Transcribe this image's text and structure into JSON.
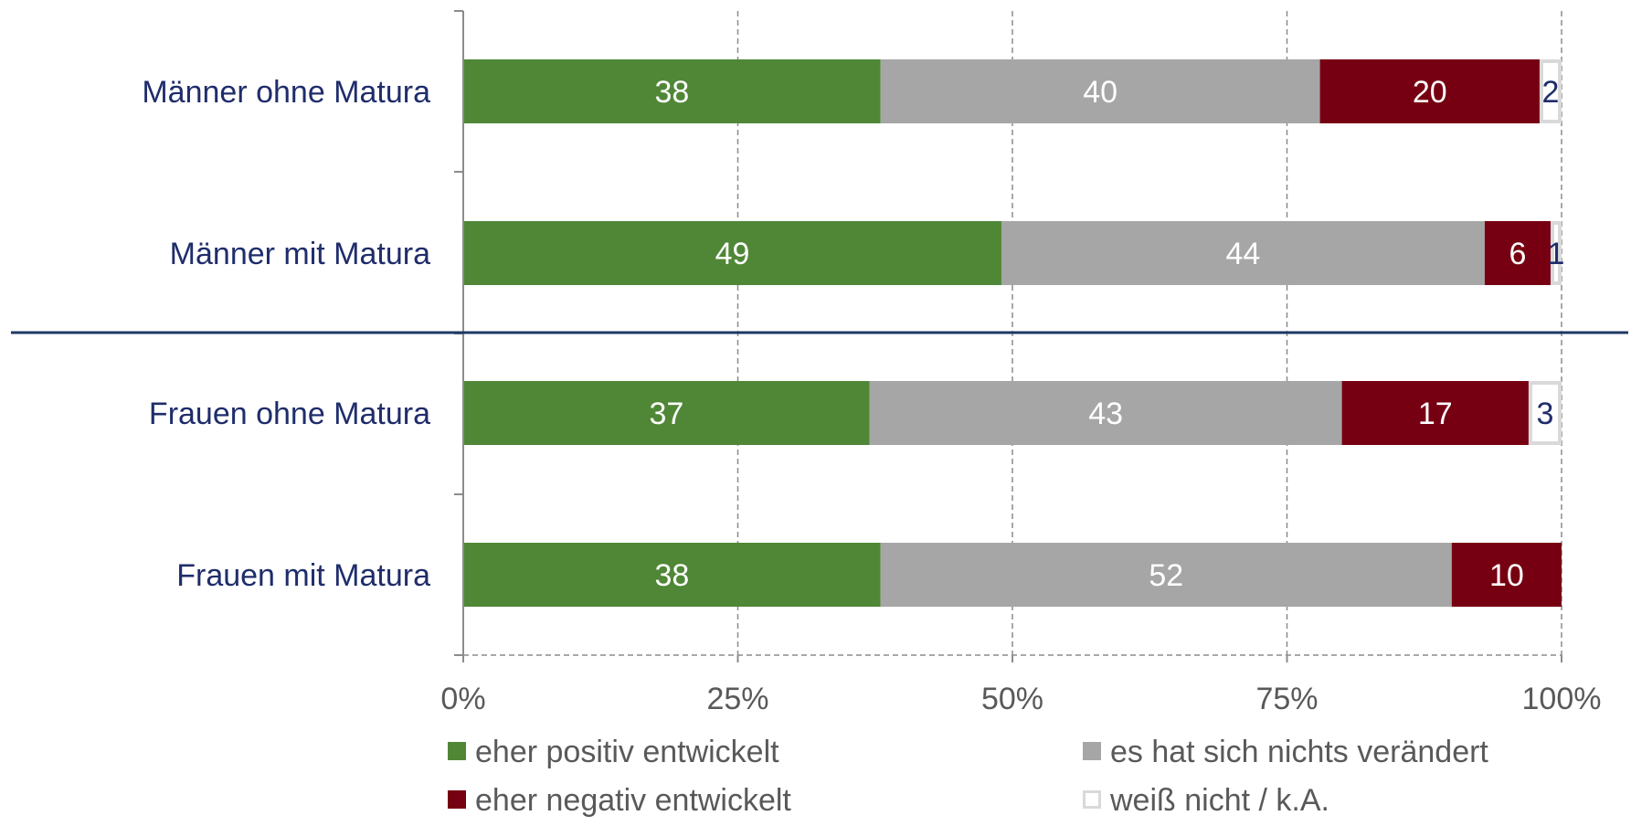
{
  "chart_data": {
    "type": "bar",
    "orientation": "horizontal",
    "stacked": true,
    "percent": true,
    "categories": [
      "Männer ohne Matura",
      "Männer mit Matura",
      "Frauen ohne Matura",
      "Frauen mit Matura"
    ],
    "series": [
      {
        "name": "eher positiv entwickelt",
        "color": "#4f8736",
        "label_color": "#ffffff",
        "values": [
          38,
          49,
          37,
          38
        ]
      },
      {
        "name": "es hat sich nichts verändert",
        "color": "#a6a6a6",
        "label_color": "#ffffff",
        "values": [
          40,
          44,
          43,
          52
        ]
      },
      {
        "name": "eher negativ entwickelt",
        "color": "#760012",
        "label_color": "#ffffff",
        "values": [
          20,
          6,
          17,
          10
        ]
      },
      {
        "name": "weiß nicht / k.A.",
        "color": "#ffffff",
        "border": "#d9d9d9",
        "label_color": "#1f2d6b",
        "values": [
          2,
          1,
          3,
          0
        ]
      }
    ],
    "xlim": [
      0,
      100
    ],
    "xticks": [
      "0%",
      "25%",
      "50%",
      "75%",
      "100%"
    ],
    "grid": true,
    "legend_position": "bottom",
    "separator_after_category": 1
  }
}
